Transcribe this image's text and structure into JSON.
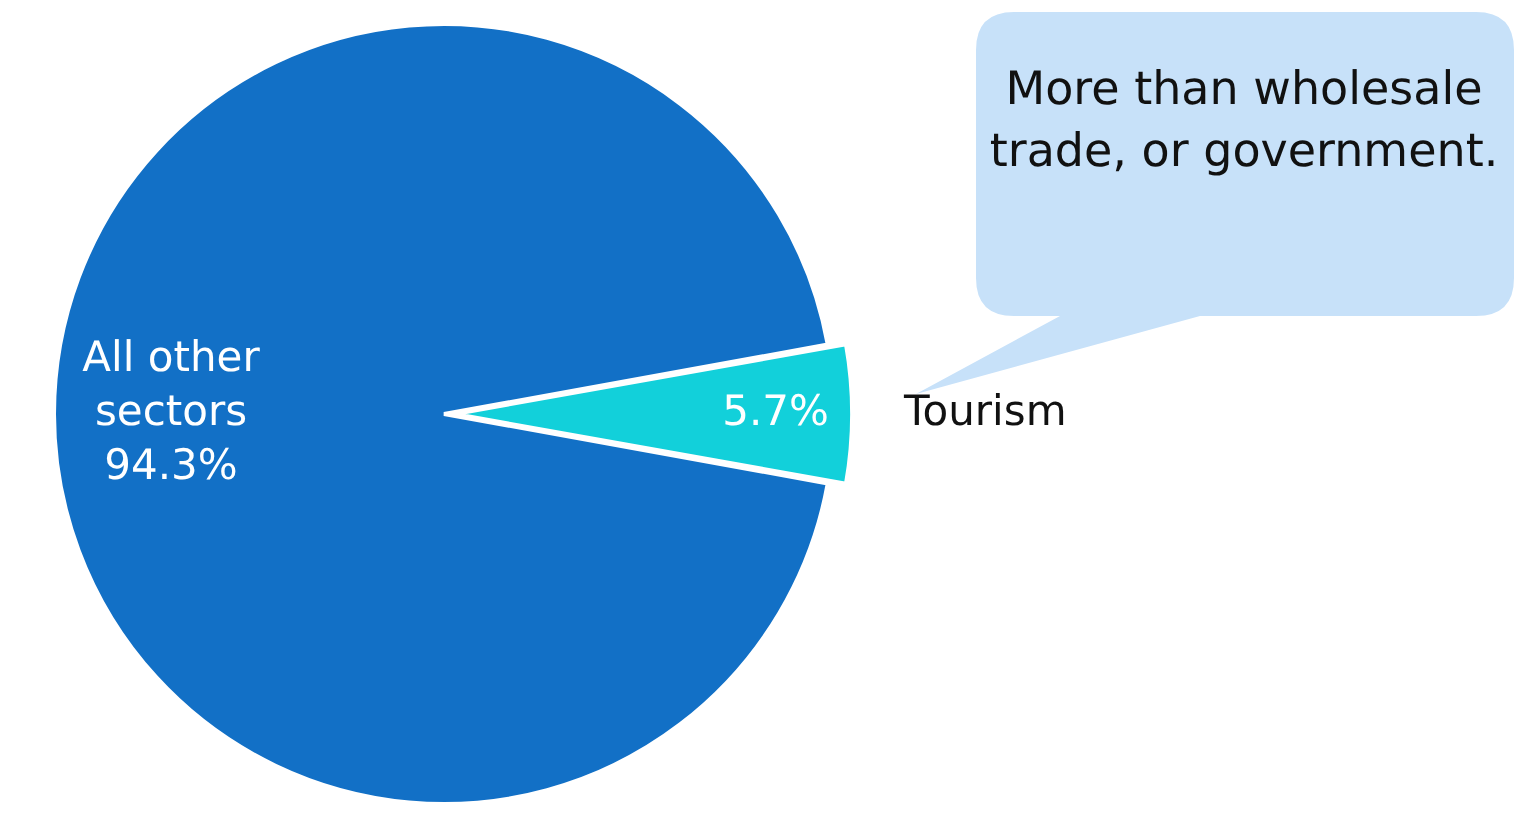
{
  "chart_data": {
    "type": "pie",
    "categories": [
      "All other sectors",
      "Tourism"
    ],
    "values": [
      94.3,
      5.7
    ],
    "value_labels": [
      "94.3%",
      "5.7%"
    ],
    "colors": [
      "#1270c6",
      "#12d0da"
    ],
    "legend": false,
    "annotations": [
      "More than wholesale trade, or government."
    ]
  }
}
